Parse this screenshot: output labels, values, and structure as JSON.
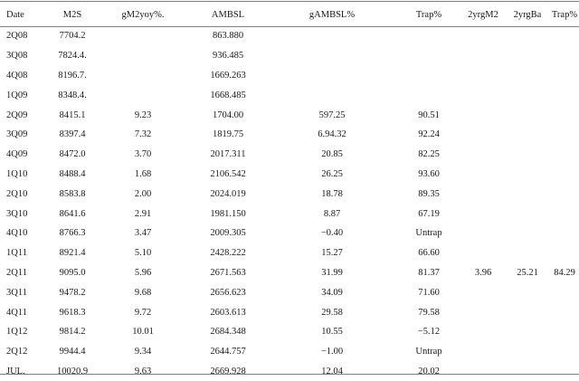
{
  "table": {
    "columns": [
      "Date",
      "M2S",
      "gM2yoy%.",
      "AMBSL",
      "gAMBSL%",
      "Trap%",
      "2yrgM2",
      "2yrgBa",
      "Trap%"
    ],
    "rows": [
      [
        "2Q08",
        "7704.2",
        "",
        "863.880",
        "",
        "",
        "",
        "",
        ""
      ],
      [
        "3Q08",
        "7824.4.",
        "",
        "936.485",
        "",
        "",
        "",
        "",
        ""
      ],
      [
        "4Q08",
        "8196.7.",
        "",
        "1669.263",
        "",
        "",
        "",
        "",
        ""
      ],
      [
        "1Q09",
        "8348.4.",
        "",
        "1668.485",
        "",
        "",
        "",
        "",
        ""
      ],
      [
        "2Q09",
        "8415.1",
        "9.23",
        "1704.00",
        "597.25",
        "90.51",
        "",
        "",
        ""
      ],
      [
        "3Q09",
        "8397.4",
        "7.32",
        "1819.75",
        "6.94.32",
        "92.24",
        "",
        "",
        ""
      ],
      [
        "4Q09",
        "8472.0",
        "3.70",
        "2017.311",
        "20.85",
        "82.25",
        "",
        "",
        ""
      ],
      [
        "1Q10",
        "8488.4",
        "1.68",
        "2106.542",
        "26.25",
        "93.60",
        "",
        "",
        ""
      ],
      [
        "2Q10",
        "8583.8",
        "2.00",
        "2024.019",
        "18.78",
        "89.35",
        "",
        "",
        ""
      ],
      [
        "3Q10",
        "8641.6",
        "2.91",
        "1981.150",
        "8.87",
        "67.19",
        "",
        "",
        ""
      ],
      [
        "4Q10",
        "8766.3",
        "3.47",
        "2009.305",
        "−0.40",
        "Untrap",
        "",
        "",
        ""
      ],
      [
        "1Q11",
        "8921.4",
        "5.10",
        "2428.222",
        "15.27",
        "66.60",
        "",
        "",
        ""
      ],
      [
        "2Q11",
        "9095.0",
        "5.96",
        "2671.563",
        "31.99",
        "81.37",
        "3.96",
        "25.21",
        "84.29"
      ],
      [
        "3Q11",
        "9478.2",
        "9.68",
        "2656.623",
        "34.09",
        "71.60",
        "",
        "",
        ""
      ],
      [
        "4Q11",
        "9618.3",
        "9.72",
        "2603.613",
        "29.58",
        "79.58",
        "",
        "",
        ""
      ],
      [
        "1Q12",
        "9814.2",
        "10.01",
        "2684.348",
        "10.55",
        "−5.12",
        "",
        "",
        ""
      ],
      [
        "2Q12",
        "9944.4",
        "9.34",
        "2644.757",
        "−1.00",
        "Untrap",
        "",
        "",
        ""
      ],
      [
        "JUL.",
        "10020.9",
        "9.63",
        "2669.928",
        "12.04",
        "20.02",
        "",
        "",
        ""
      ]
    ]
  }
}
